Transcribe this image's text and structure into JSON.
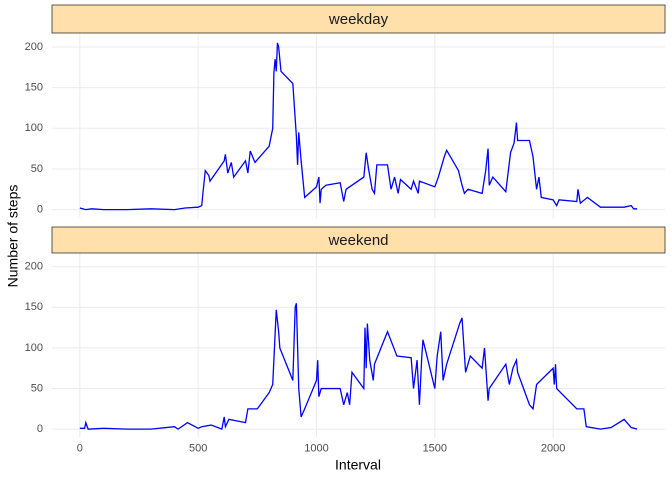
{
  "chart_data": {
    "type": "line",
    "x_label": "Interval",
    "y_label": "Number of steps",
    "xlim": [
      -117.75,
      2472.75
    ],
    "xticks": [
      0,
      500,
      1000,
      1500,
      2000
    ],
    "ylim": [
      -10.3,
      216.3
    ],
    "yticks": [
      0,
      50,
      100,
      150,
      200
    ],
    "grid": true,
    "color": "blue",
    "facets": [
      {
        "title": "weekday",
        "x": [
          0,
          25,
          50,
          100,
          200,
          300,
          400,
          445,
          500,
          515,
          520,
          530,
          545,
          550,
          610,
          615,
          625,
          640,
          650,
          700,
          710,
          720,
          740,
          800,
          815,
          820,
          825,
          830,
          835,
          840,
          850,
          900,
          915,
          920,
          925,
          935,
          945,
          950,
          1000,
          1010,
          1015,
          1020,
          1040,
          1100,
          1115,
          1125,
          1150,
          1200,
          1210,
          1220,
          1235,
          1245,
          1255,
          1300,
          1315,
          1330,
          1345,
          1355,
          1400,
          1410,
          1430,
          1435,
          1500,
          1515,
          1540,
          1550,
          1600,
          1615,
          1625,
          1640,
          1700,
          1715,
          1725,
          1730,
          1745,
          1800,
          1820,
          1835,
          1845,
          1850,
          1900,
          1915,
          1930,
          1940,
          1950,
          2000,
          2015,
          2025,
          2100,
          2105,
          2115,
          2145,
          2200,
          2300,
          2330,
          2340,
          2355
        ],
        "values": [
          2,
          0,
          1,
          0,
          0,
          1,
          0,
          2,
          3,
          5,
          20,
          48,
          42,
          35,
          60,
          68,
          45,
          58,
          40,
          60,
          45,
          72,
          58,
          78,
          100,
          168,
          185,
          170,
          205,
          200,
          170,
          155,
          90,
          55,
          95,
          60,
          30,
          15,
          28,
          40,
          8,
          25,
          30,
          33,
          10,
          25,
          30,
          40,
          70,
          50,
          25,
          20,
          55,
          55,
          25,
          40,
          20,
          37,
          25,
          35,
          20,
          35,
          28,
          40,
          65,
          73,
          48,
          30,
          20,
          25,
          20,
          48,
          75,
          30,
          40,
          22,
          70,
          82,
          107,
          85,
          85,
          65,
          25,
          40,
          15,
          12,
          5,
          12,
          10,
          25,
          8,
          15,
          3,
          3,
          5,
          1,
          1
        ]
      },
      {
        "title": "weekend",
        "x": [
          0,
          20,
          25,
          35,
          100,
          200,
          300,
          400,
          415,
          455,
          500,
          515,
          555,
          600,
          610,
          615,
          630,
          700,
          710,
          750,
          800,
          815,
          830,
          840,
          845,
          900,
          910,
          915,
          925,
          935,
          950,
          1000,
          1005,
          1010,
          1020,
          1100,
          1115,
          1130,
          1140,
          1150,
          1200,
          1205,
          1210,
          1215,
          1225,
          1240,
          1245,
          1300,
          1340,
          1400,
          1410,
          1425,
          1435,
          1445,
          1450,
          1500,
          1510,
          1525,
          1535,
          1550,
          1605,
          1615,
          1630,
          1650,
          1700,
          1710,
          1725,
          1730,
          1800,
          1815,
          1830,
          1845,
          1850,
          1900,
          1915,
          1930,
          2000,
          2005,
          2010,
          2015,
          2100,
          2130,
          2140,
          2200,
          2245,
          2300,
          2330,
          2355
        ],
        "values": [
          1,
          1,
          8,
          0,
          1,
          0,
          0,
          3,
          0,
          8,
          1,
          3,
          5,
          0,
          15,
          3,
          12,
          8,
          25,
          25,
          45,
          55,
          147,
          120,
          100,
          60,
          150,
          155,
          50,
          15,
          25,
          60,
          85,
          40,
          50,
          50,
          30,
          45,
          30,
          70,
          50,
          125,
          75,
          130,
          85,
          60,
          80,
          120,
          90,
          88,
          50,
          85,
          30,
          90,
          110,
          50,
          90,
          120,
          60,
          80,
          130,
          137,
          70,
          90,
          75,
          100,
          35,
          50,
          80,
          55,
          75,
          85,
          70,
          30,
          25,
          55,
          75,
          55,
          80,
          50,
          25,
          25,
          3,
          0,
          2,
          12,
          2,
          0
        ]
      }
    ]
  }
}
